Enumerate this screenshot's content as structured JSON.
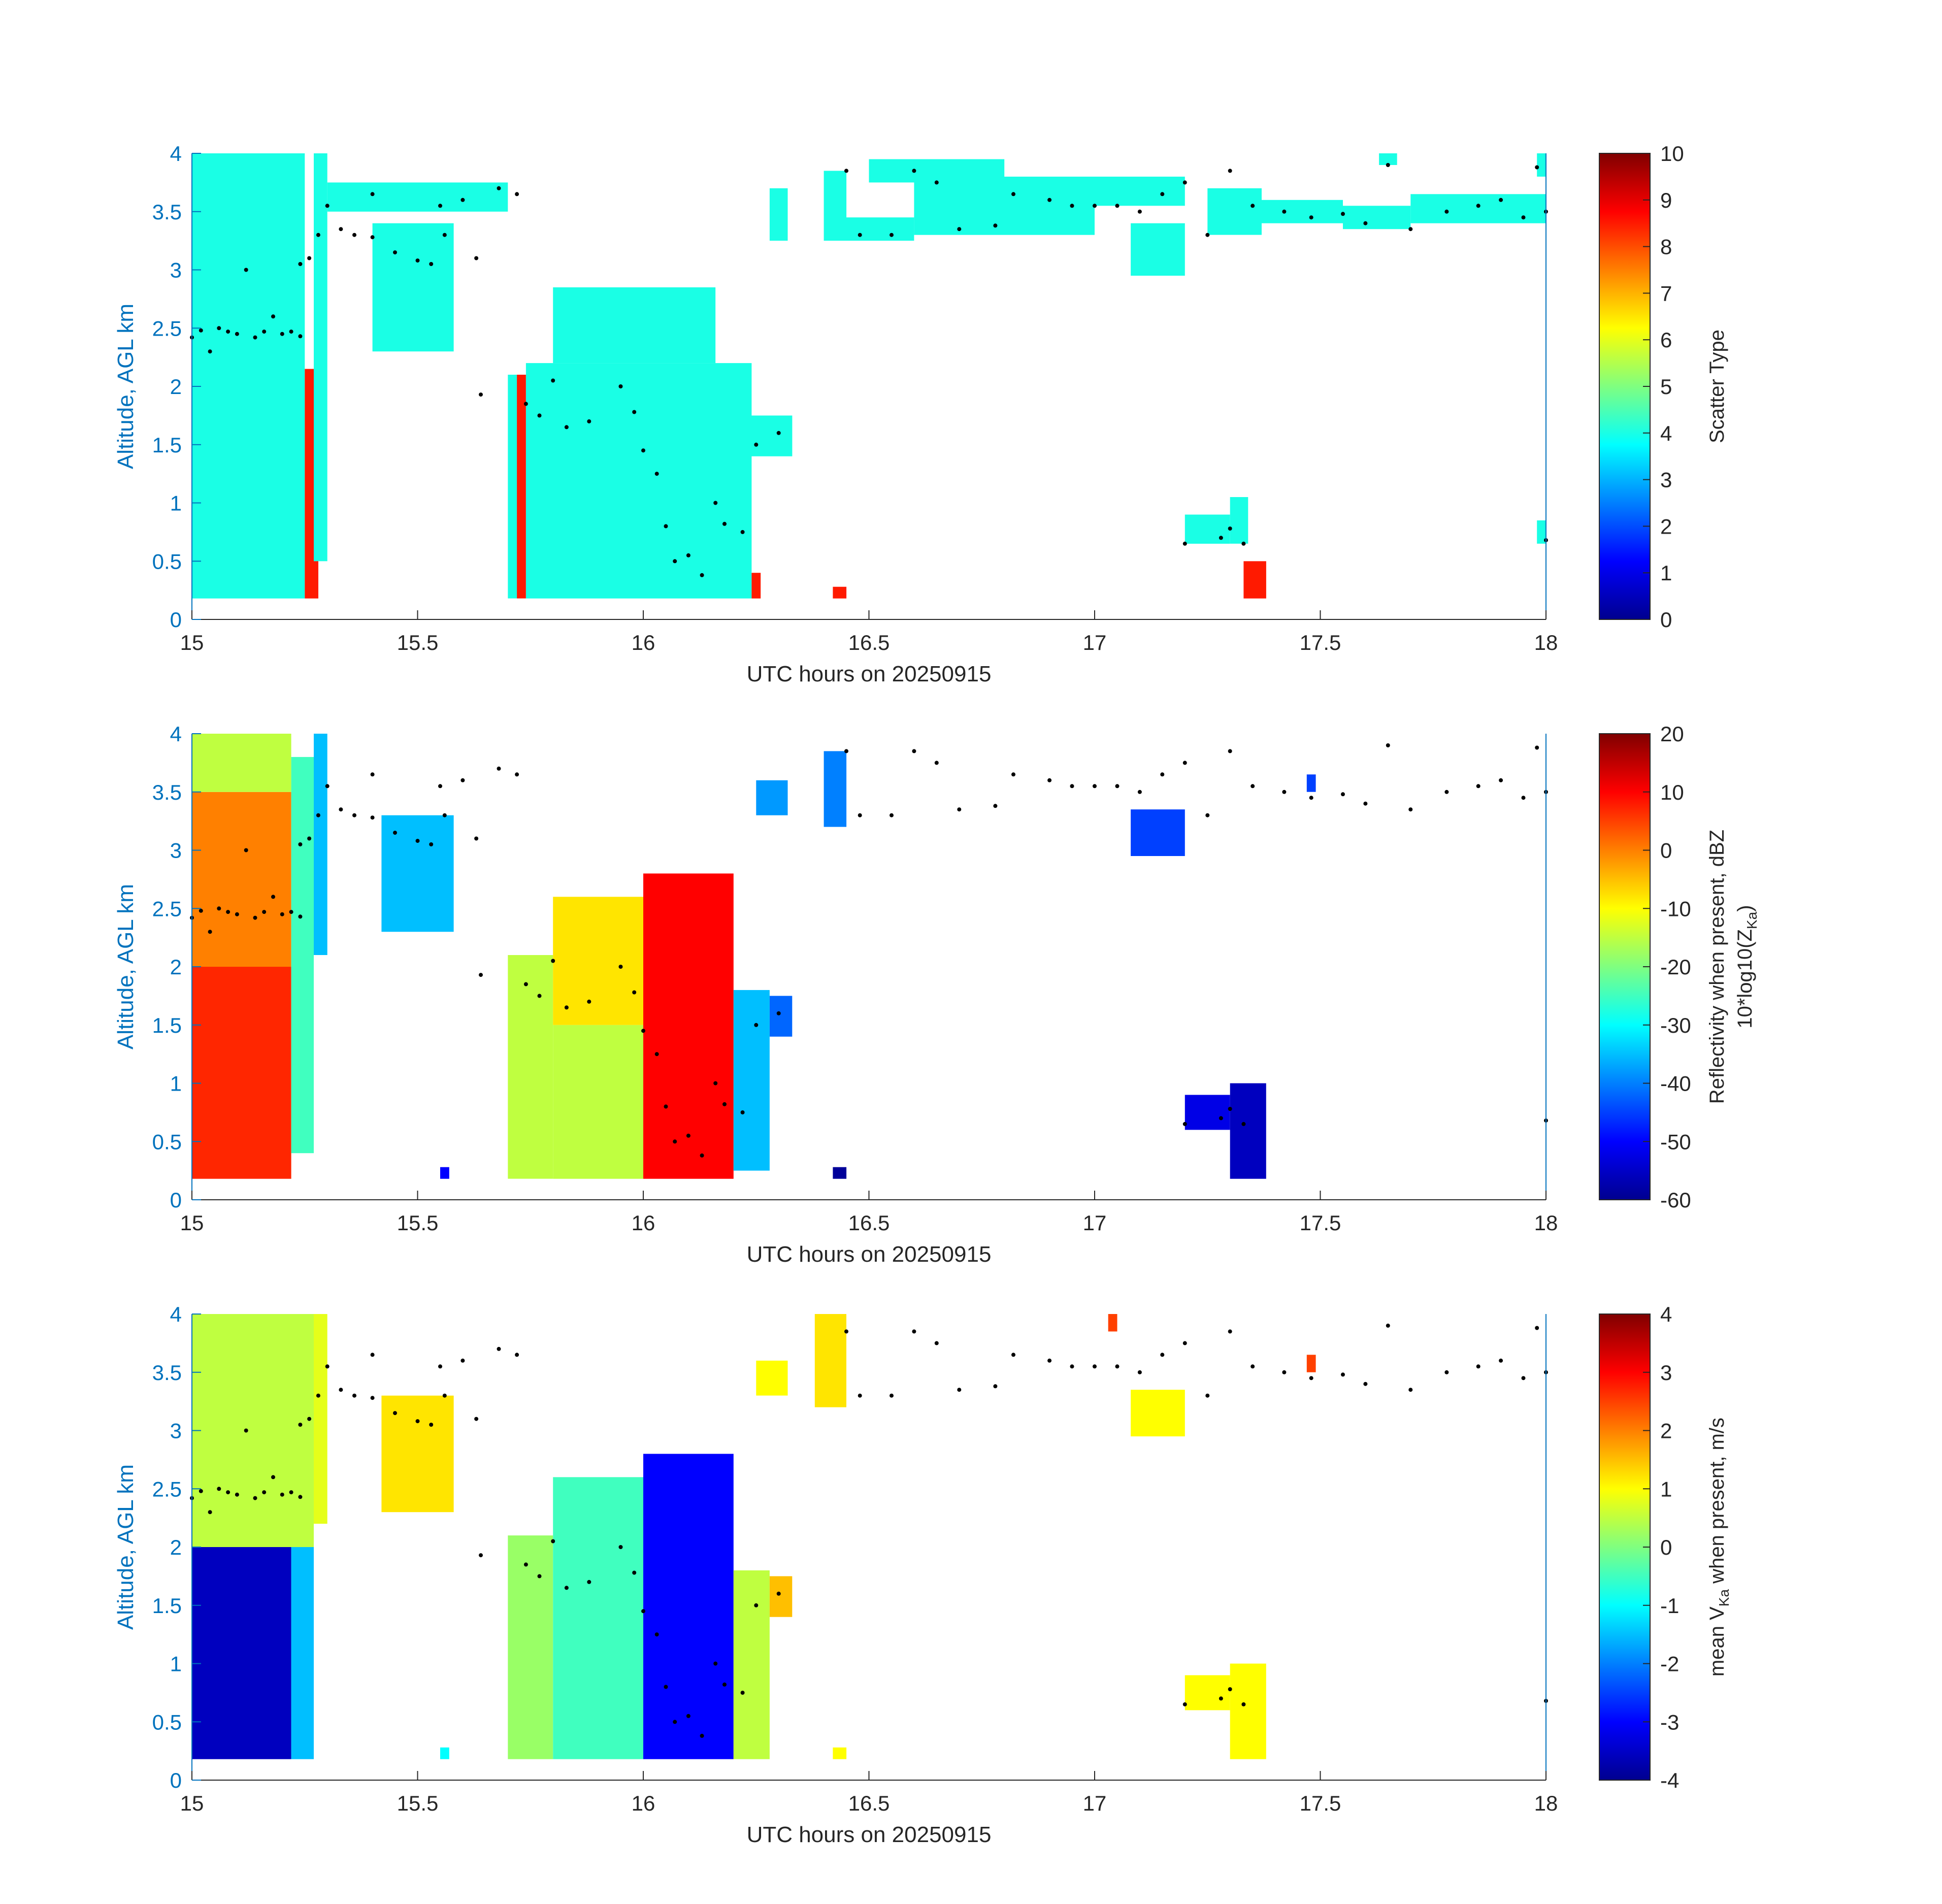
{
  "chart_data": [
    {
      "type": "heatmap",
      "title": "",
      "xlabel": "UTC hours on 20250915",
      "ylabel": "Altitude, AGL km",
      "xlim": [
        15,
        18
      ],
      "ylim": [
        0,
        4
      ],
      "xticks": [
        15,
        15.5,
        16,
        16.5,
        17,
        17.5,
        18
      ],
      "xtick_labels": [
        "15",
        "15.5",
        "16",
        "16.5",
        "17",
        "17.5",
        "18"
      ],
      "yticks": [
        0,
        0.5,
        1,
        1.5,
        2,
        2.5,
        3,
        3.5,
        4
      ],
      "ytick_labels": [
        "0",
        "0.5",
        "1",
        "1.5",
        "2",
        "2.5",
        "3",
        "3.5",
        "4"
      ],
      "colorbar": {
        "label": "Scatter Type",
        "range": [
          0,
          10
        ],
        "ticks": [
          0,
          1,
          2,
          3,
          4,
          5,
          6,
          7,
          8,
          9,
          10
        ],
        "tick_labels": [
          "0",
          "1",
          "2",
          "3",
          "4",
          "5",
          "6",
          "7",
          "8",
          "9",
          "10"
        ],
        "colormap": "jet"
      },
      "cells": [
        [
          15.0,
          15.25,
          0.18,
          4.0,
          4
        ],
        [
          15.25,
          15.28,
          0.18,
          2.15,
          8.5
        ],
        [
          15.27,
          15.3,
          0.5,
          4.0,
          4
        ],
        [
          15.4,
          15.58,
          2.3,
          3.4,
          4
        ],
        [
          15.3,
          15.7,
          3.5,
          3.75,
          4
        ],
        [
          15.7,
          15.73,
          0.18,
          2.1,
          4
        ],
        [
          15.72,
          15.74,
          0.18,
          2.1,
          8.5
        ],
        [
          15.74,
          16.24,
          0.18,
          2.2,
          4
        ],
        [
          15.8,
          16.16,
          2.2,
          2.85,
          4
        ],
        [
          16.22,
          16.33,
          1.4,
          1.75,
          4
        ],
        [
          16.24,
          16.26,
          0.18,
          0.4,
          8.5
        ],
        [
          16.42,
          16.45,
          0.18,
          0.28,
          8.5
        ],
        [
          16.28,
          16.32,
          3.25,
          3.7,
          4
        ],
        [
          16.4,
          16.45,
          3.25,
          3.85,
          4
        ],
        [
          16.45,
          16.6,
          3.25,
          3.45,
          4
        ],
        [
          16.5,
          16.8,
          3.75,
          3.95,
          4
        ],
        [
          16.6,
          17.0,
          3.3,
          3.8,
          4
        ],
        [
          17.0,
          17.2,
          3.55,
          3.8,
          4
        ],
        [
          17.08,
          17.2,
          2.95,
          3.4,
          4
        ],
        [
          17.25,
          17.37,
          3.3,
          3.7,
          4
        ],
        [
          17.35,
          17.55,
          3.4,
          3.6,
          4
        ],
        [
          17.55,
          17.7,
          3.35,
          3.55,
          4
        ],
        [
          17.7,
          18.0,
          3.4,
          3.65,
          4
        ],
        [
          17.63,
          17.67,
          3.9,
          4.0,
          4
        ],
        [
          17.98,
          18.0,
          3.8,
          4.0,
          4
        ],
        [
          17.2,
          17.3,
          0.65,
          0.9,
          4
        ],
        [
          17.3,
          17.34,
          0.65,
          1.05,
          4
        ],
        [
          17.33,
          17.38,
          0.18,
          0.5,
          8.5
        ],
        [
          17.98,
          18.0,
          0.65,
          0.85,
          4
        ]
      ]
    },
    {
      "type": "heatmap",
      "title": "",
      "xlabel": "UTC hours on 20250915",
      "ylabel": "Altitude, AGL km",
      "xlim": [
        15,
        18
      ],
      "ylim": [
        0,
        4
      ],
      "xticks": [
        15,
        15.5,
        16,
        16.5,
        17,
        17.5,
        18
      ],
      "xtick_labels": [
        "15",
        "15.5",
        "16",
        "16.5",
        "17",
        "17.5",
        "18"
      ],
      "yticks": [
        0,
        0.5,
        1,
        1.5,
        2,
        2.5,
        3,
        3.5,
        4
      ],
      "ytick_labels": [
        "0",
        "0.5",
        "1",
        "1.5",
        "2",
        "2.5",
        "3",
        "3.5",
        "4"
      ],
      "colorbar": {
        "label": "Reflectivity when present, dBZ",
        "label2": "10*log10(Z",
        "label2_sub": "Ka",
        "label2_end": ")",
        "range": [
          -60,
          20
        ],
        "ticks": [
          -60,
          -50,
          -40,
          -30,
          -20,
          -10,
          0,
          10,
          20
        ],
        "tick_labels": [
          "-60",
          "-50",
          "-40",
          "-30",
          "-20",
          "-10",
          "0",
          "10",
          "20"
        ],
        "colormap": "jet"
      },
      "cells": [
        [
          15.0,
          15.22,
          0.18,
          2.0,
          7
        ],
        [
          15.0,
          15.22,
          2.0,
          3.5,
          0
        ],
        [
          15.0,
          15.22,
          3.5,
          4.0,
          -15
        ],
        [
          15.22,
          15.27,
          0.4,
          3.8,
          -25
        ],
        [
          15.27,
          15.3,
          2.1,
          4.0,
          -35
        ],
        [
          15.42,
          15.58,
          2.3,
          3.3,
          -35
        ],
        [
          15.7,
          15.8,
          0.18,
          2.1,
          -15
        ],
        [
          15.8,
          16.0,
          0.18,
          1.5,
          -15
        ],
        [
          15.8,
          16.0,
          1.5,
          2.6,
          -8
        ],
        [
          16.0,
          16.2,
          0.18,
          2.8,
          10
        ],
        [
          16.2,
          16.28,
          0.25,
          1.8,
          -35
        ],
        [
          16.28,
          16.33,
          1.4,
          1.75,
          -42
        ],
        [
          16.42,
          16.45,
          0.18,
          0.28,
          -58
        ],
        [
          16.4,
          16.45,
          3.2,
          3.85,
          -40
        ],
        [
          17.08,
          17.2,
          2.95,
          3.35,
          -45
        ],
        [
          17.2,
          17.3,
          0.6,
          0.9,
          -52
        ],
        [
          17.3,
          17.38,
          0.18,
          1.0,
          -55
        ],
        [
          15.55,
          15.57,
          0.18,
          0.28,
          -50
        ],
        [
          16.25,
          16.32,
          3.3,
          3.6,
          -38
        ],
        [
          17.47,
          17.49,
          3.5,
          3.65,
          -45
        ]
      ]
    },
    {
      "type": "heatmap",
      "title": "",
      "xlabel": "UTC hours on 20250915",
      "ylabel": "Altitude, AGL km",
      "xlim": [
        15,
        18
      ],
      "ylim": [
        0,
        4
      ],
      "xticks": [
        15,
        15.5,
        16,
        16.5,
        17,
        17.5,
        18
      ],
      "xtick_labels": [
        "15",
        "15.5",
        "16",
        "16.5",
        "17",
        "17.5",
        "18"
      ],
      "yticks": [
        0,
        0.5,
        1,
        1.5,
        2,
        2.5,
        3,
        3.5,
        4
      ],
      "ytick_labels": [
        "0",
        "0.5",
        "1",
        "1.5",
        "2",
        "2.5",
        "3",
        "3.5",
        "4"
      ],
      "colorbar": {
        "label": "mean V",
        "label_sub": "Ka",
        "label_end": " when present, m/s",
        "range": [
          -4,
          4
        ],
        "ticks": [
          -4,
          -3,
          -2,
          -1,
          0,
          1,
          2,
          3,
          4
        ],
        "tick_labels": [
          "-4",
          "-3",
          "-2",
          "-1",
          "0",
          "1",
          "2",
          "3",
          "4"
        ],
        "colormap": "jet"
      },
      "cells": [
        [
          15.0,
          15.22,
          0.18,
          2.0,
          -3.5
        ],
        [
          15.0,
          15.27,
          2.0,
          4.0,
          0.5
        ],
        [
          15.22,
          15.27,
          0.18,
          2.0,
          -1.5
        ],
        [
          15.27,
          15.3,
          2.2,
          4.0,
          0.8
        ],
        [
          15.42,
          15.58,
          2.3,
          3.3,
          1.2
        ],
        [
          15.7,
          15.8,
          0.18,
          2.1,
          0.2
        ],
        [
          15.8,
          16.0,
          0.18,
          2.6,
          -0.5
        ],
        [
          16.0,
          16.2,
          0.18,
          2.8,
          -3.0
        ],
        [
          16.2,
          16.28,
          0.18,
          1.8,
          0.5
        ],
        [
          16.28,
          16.33,
          1.4,
          1.75,
          1.5
        ],
        [
          16.42,
          16.45,
          0.18,
          0.28,
          1.0
        ],
        [
          16.38,
          16.45,
          3.2,
          4.0,
          1.2
        ],
        [
          17.08,
          17.2,
          2.95,
          3.35,
          1.0
        ],
        [
          17.2,
          17.3,
          0.6,
          0.9,
          1.0
        ],
        [
          17.3,
          17.38,
          0.18,
          1.0,
          1.0
        ],
        [
          17.03,
          17.05,
          3.85,
          4.0,
          2.5
        ],
        [
          17.47,
          17.49,
          3.5,
          3.65,
          2.5
        ],
        [
          15.55,
          15.57,
          0.18,
          0.28,
          -1.0
        ],
        [
          16.25,
          16.32,
          3.3,
          3.6,
          1.0
        ]
      ]
    }
  ],
  "overlay_points": [
    [
      15.0,
      2.42
    ],
    [
      15.02,
      2.48
    ],
    [
      15.04,
      2.3
    ],
    [
      15.06,
      2.5
    ],
    [
      15.08,
      2.47
    ],
    [
      15.1,
      2.45
    ],
    [
      15.12,
      3.0
    ],
    [
      15.14,
      2.42
    ],
    [
      15.16,
      2.47
    ],
    [
      15.18,
      2.6
    ],
    [
      15.2,
      2.45
    ],
    [
      15.22,
      2.47
    ],
    [
      15.24,
      2.43
    ],
    [
      15.24,
      3.05
    ],
    [
      15.26,
      3.1
    ],
    [
      15.28,
      3.3
    ],
    [
      15.3,
      3.55
    ],
    [
      15.33,
      3.35
    ],
    [
      15.36,
      3.3
    ],
    [
      15.4,
      3.28
    ],
    [
      15.45,
      3.15
    ],
    [
      15.5,
      3.08
    ],
    [
      15.53,
      3.05
    ],
    [
      15.56,
      3.3
    ],
    [
      15.6,
      3.6
    ],
    [
      15.63,
      3.1
    ],
    [
      15.68,
      3.7
    ],
    [
      15.72,
      3.65
    ],
    [
      15.64,
      1.93
    ],
    [
      15.74,
      1.85
    ],
    [
      15.77,
      1.75
    ],
    [
      15.8,
      2.05
    ],
    [
      15.83,
      1.65
    ],
    [
      15.88,
      1.7
    ],
    [
      15.95,
      2.0
    ],
    [
      15.98,
      1.78
    ],
    [
      16.0,
      1.45
    ],
    [
      16.03,
      1.25
    ],
    [
      16.05,
      0.8
    ],
    [
      16.07,
      0.5
    ],
    [
      16.1,
      0.55
    ],
    [
      16.13,
      0.38
    ],
    [
      16.16,
      1.0
    ],
    [
      16.18,
      0.82
    ],
    [
      16.22,
      0.75
    ],
    [
      16.25,
      1.5
    ],
    [
      16.3,
      1.6
    ],
    [
      15.4,
      3.65
    ],
    [
      15.55,
      3.55
    ],
    [
      16.45,
      3.85
    ],
    [
      16.48,
      3.3
    ],
    [
      16.55,
      3.3
    ],
    [
      16.6,
      3.85
    ],
    [
      16.65,
      3.75
    ],
    [
      16.7,
      3.35
    ],
    [
      16.78,
      3.38
    ],
    [
      16.82,
      3.65
    ],
    [
      16.9,
      3.6
    ],
    [
      16.95,
      3.55
    ],
    [
      17.0,
      3.55
    ],
    [
      17.05,
      3.55
    ],
    [
      17.1,
      3.5
    ],
    [
      17.15,
      3.65
    ],
    [
      17.2,
      3.75
    ],
    [
      17.3,
      3.85
    ],
    [
      17.25,
      3.3
    ],
    [
      17.35,
      3.55
    ],
    [
      17.42,
      3.5
    ],
    [
      17.48,
      3.45
    ],
    [
      17.55,
      3.48
    ],
    [
      17.6,
      3.4
    ],
    [
      17.65,
      3.9
    ],
    [
      17.7,
      3.35
    ],
    [
      17.78,
      3.5
    ],
    [
      17.85,
      3.55
    ],
    [
      17.9,
      3.6
    ],
    [
      17.95,
      3.45
    ],
    [
      18.0,
      3.5
    ],
    [
      17.2,
      0.65
    ],
    [
      17.28,
      0.7
    ],
    [
      17.3,
      0.78
    ],
    [
      17.33,
      0.65
    ],
    [
      18.0,
      0.68
    ],
    [
      17.98,
      3.88
    ]
  ]
}
